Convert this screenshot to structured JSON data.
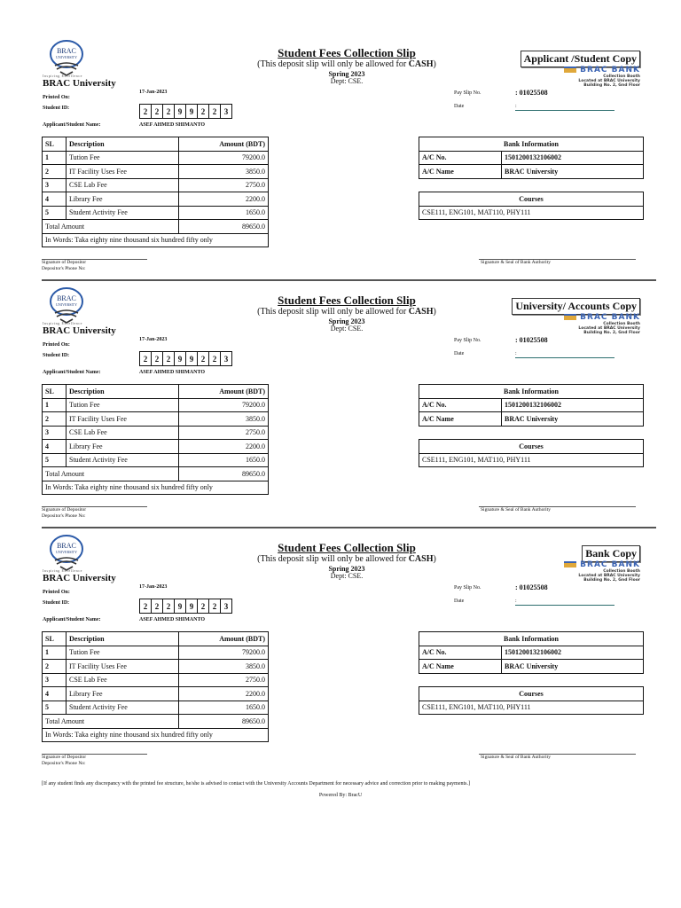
{
  "slip_common": {
    "university_logo_text": [
      "BRAC",
      "UNIVERSITY"
    ],
    "tagline": "Inspiring Excellence",
    "university_name": "BRAC University",
    "title": "Student Fees Collection Slip",
    "subtitle_prefix": "(This deposit slip will only be allowed for ",
    "subtitle_bold": "CASH",
    "subtitle_suffix": ")",
    "semester": "Spring 2023",
    "dept": "Dept: CSE.",
    "bank_logo": {
      "name": "BRAC BANK",
      "lines": [
        "Collection Booth",
        "Located at BRAC University",
        "Building No. 2, Gnd Floor"
      ]
    },
    "printed_on_label": "Printed On:",
    "printed_on": "17-Jan-2023",
    "student_id_label": "Student ID:",
    "student_id_digits": [
      "2",
      "2",
      "2",
      "9",
      "9",
      "2",
      "2",
      "3"
    ],
    "name_label": "Applicant/Student Name:",
    "name": "ASEF AHMED SHIMANTO",
    "pay_slip_label": "Pay Slip No.",
    "pay_slip_no": ": 01025508",
    "date_label": "Date",
    "date_value": ":",
    "fees_headers": [
      "SL",
      "Description",
      "Amount (BDT)"
    ],
    "fees": [
      {
        "sl": "1",
        "desc": "Tution Fee",
        "amount": "79200.0"
      },
      {
        "sl": "2",
        "desc": "IT Facility Uses Fee",
        "amount": "3850.0"
      },
      {
        "sl": "3",
        "desc": "CSE Lab Fee",
        "amount": "2750.0"
      },
      {
        "sl": "4",
        "desc": "Library Fee",
        "amount": "2200.0"
      },
      {
        "sl": "5",
        "desc": "Student Activity Fee",
        "amount": "1650.0"
      }
    ],
    "total_label": "Total Amount",
    "total": "89650.0",
    "in_words": "In Words: Taka eighty nine thousand six hundred fifty only",
    "bank_info_header": "Bank Information",
    "ac_no_label": "A/C No.",
    "ac_no": "1501200132106002",
    "ac_name_label": "A/C Name",
    "ac_name": "BRAC University",
    "courses_header": "Courses",
    "courses": "CSE111, ENG101, MAT110, PHY111",
    "sig_depositor": "Signature of Depositor",
    "phone_label": "Depositor's Phone No:",
    "sig_bank": "Signature & Seal of Bank Authority"
  },
  "copies": [
    "Applicant /Student Copy",
    "University/ Accounts Copy",
    "Bank Copy"
  ],
  "footer": {
    "notice": "[If any student finds any discrepancy with the printed fee structure, he/she is advised to contact with the University Accounts Department for necessary advice and correction prior to making payments.]",
    "powered_by": "Powered By: BracU"
  },
  "colors": {
    "logo_blue": "#2b5aa8",
    "bank_blue": "#3a63b3",
    "bank_orange": "#e0a83a"
  }
}
